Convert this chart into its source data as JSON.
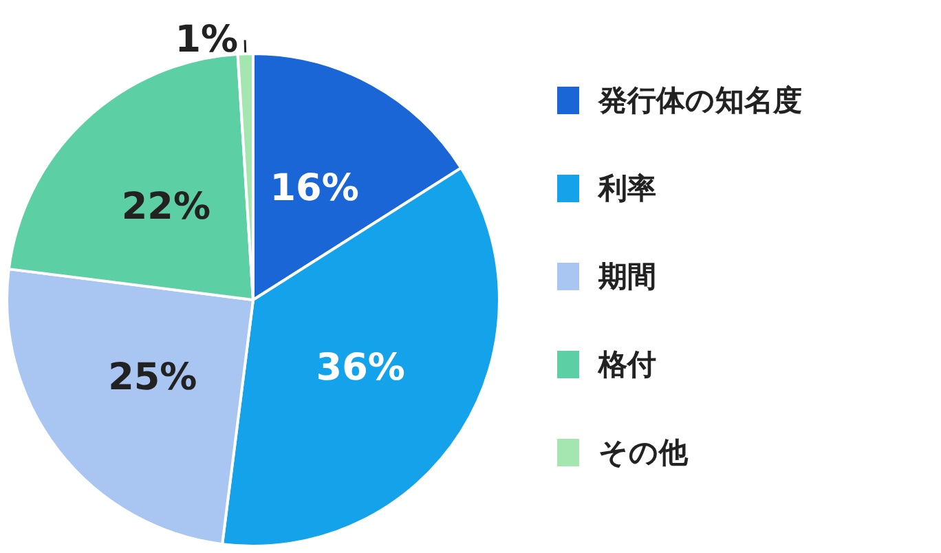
{
  "chart_data": {
    "type": "pie",
    "categories": [
      "発行体の知名度",
      "利率",
      "期間",
      "格付",
      "その他"
    ],
    "values": [
      16,
      36,
      25,
      22,
      1
    ],
    "value_labels": [
      "16%",
      "36%",
      "25%",
      "22%",
      "1%"
    ],
    "colors": [
      "#1a66d6",
      "#14a3eb",
      "#a9c6f2",
      "#5ccfa4",
      "#a5e6b0"
    ],
    "legend": "right"
  }
}
